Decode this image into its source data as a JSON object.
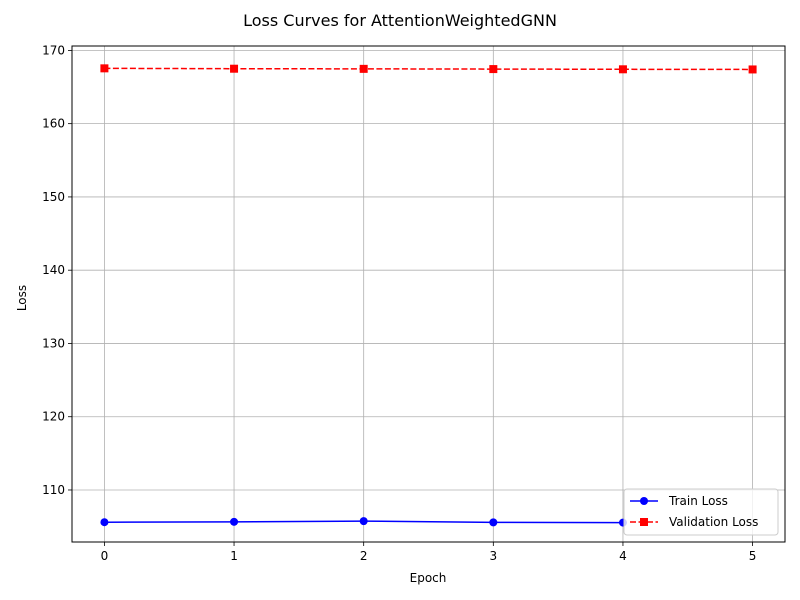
{
  "chart_data": {
    "type": "line",
    "title": "Loss Curves for AttentionWeightedGNN",
    "xlabel": "Epoch",
    "ylabel": "Loss",
    "x": [
      0,
      1,
      2,
      3,
      4,
      5
    ],
    "xlim": [
      -0.25,
      5.25
    ],
    "ylim": [
      102.9,
      170.6
    ],
    "xticks": [
      0,
      1,
      2,
      3,
      4,
      5
    ],
    "yticks": [
      110,
      120,
      130,
      140,
      150,
      160,
      170
    ],
    "grid": true,
    "legend_position": "lower-right",
    "series": [
      {
        "name": "Train Loss",
        "color": "#0000ff",
        "line_style": "solid",
        "marker": "circle",
        "x": [
          0,
          1,
          2,
          3,
          4
        ],
        "values": [
          105.6,
          105.65,
          105.75,
          105.58,
          105.55
        ]
      },
      {
        "name": "Validation Loss",
        "color": "#ff0000",
        "line_style": "dashed",
        "marker": "square",
        "x": [
          0,
          1,
          2,
          3,
          4,
          5
        ],
        "values": [
          167.55,
          167.5,
          167.48,
          167.45,
          167.42,
          167.4
        ]
      }
    ]
  }
}
